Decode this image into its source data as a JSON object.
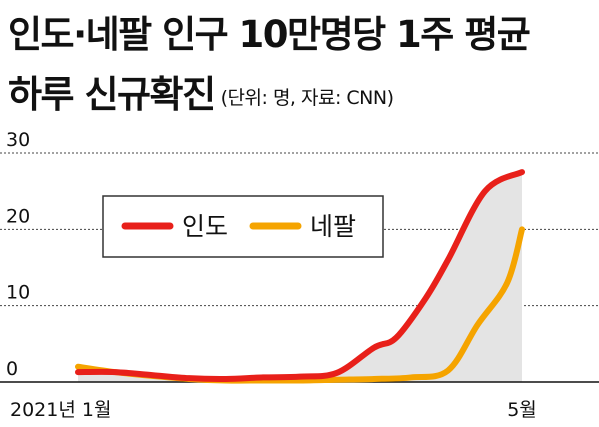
{
  "title_line1": "인도·네팔 인구 10만명당 1주 평균",
  "title_line2": "하루 신규확진",
  "source_note": "(단위: 명, 자료: CNN)",
  "chart_data": {
    "type": "line",
    "x_labels": [
      "2021년 1월",
      "5월"
    ],
    "ylim": [
      0,
      30
    ],
    "yticks": [
      "0",
      "10",
      "20",
      "30"
    ],
    "grid": true,
    "legend_position": "upper-left",
    "series": [
      {
        "name": "인도",
        "color": "#e8201a",
        "points": [
          [
            0,
            1.3
          ],
          [
            0.5,
            1.3
          ],
          [
            1,
            0.9
          ],
          [
            1.5,
            0.5
          ],
          [
            2,
            0.4
          ],
          [
            2.5,
            0.6
          ],
          [
            3,
            0.7
          ],
          [
            3.5,
            1.2
          ],
          [
            4,
            4.5
          ],
          [
            4.3,
            5.8
          ],
          [
            4.7,
            11
          ],
          [
            5,
            16
          ],
          [
            5.5,
            25
          ],
          [
            6,
            27.5
          ]
        ]
      },
      {
        "name": "네팔",
        "color": "#f5a400",
        "points": [
          [
            0,
            2
          ],
          [
            0.5,
            1.3
          ],
          [
            1,
            0.8
          ],
          [
            1.5,
            0.4
          ],
          [
            2,
            0.2
          ],
          [
            2.5,
            0.2
          ],
          [
            3,
            0.2
          ],
          [
            3.5,
            0.3
          ],
          [
            4,
            0.4
          ],
          [
            4.5,
            0.6
          ],
          [
            5,
            1.5
          ],
          [
            5.4,
            7.5
          ],
          [
            5.8,
            13
          ],
          [
            6,
            20
          ]
        ]
      }
    ]
  },
  "colors": {
    "fill": "#e4e4e4",
    "grid": "#444444",
    "axis": "#111111",
    "legend_border": "#333333"
  }
}
